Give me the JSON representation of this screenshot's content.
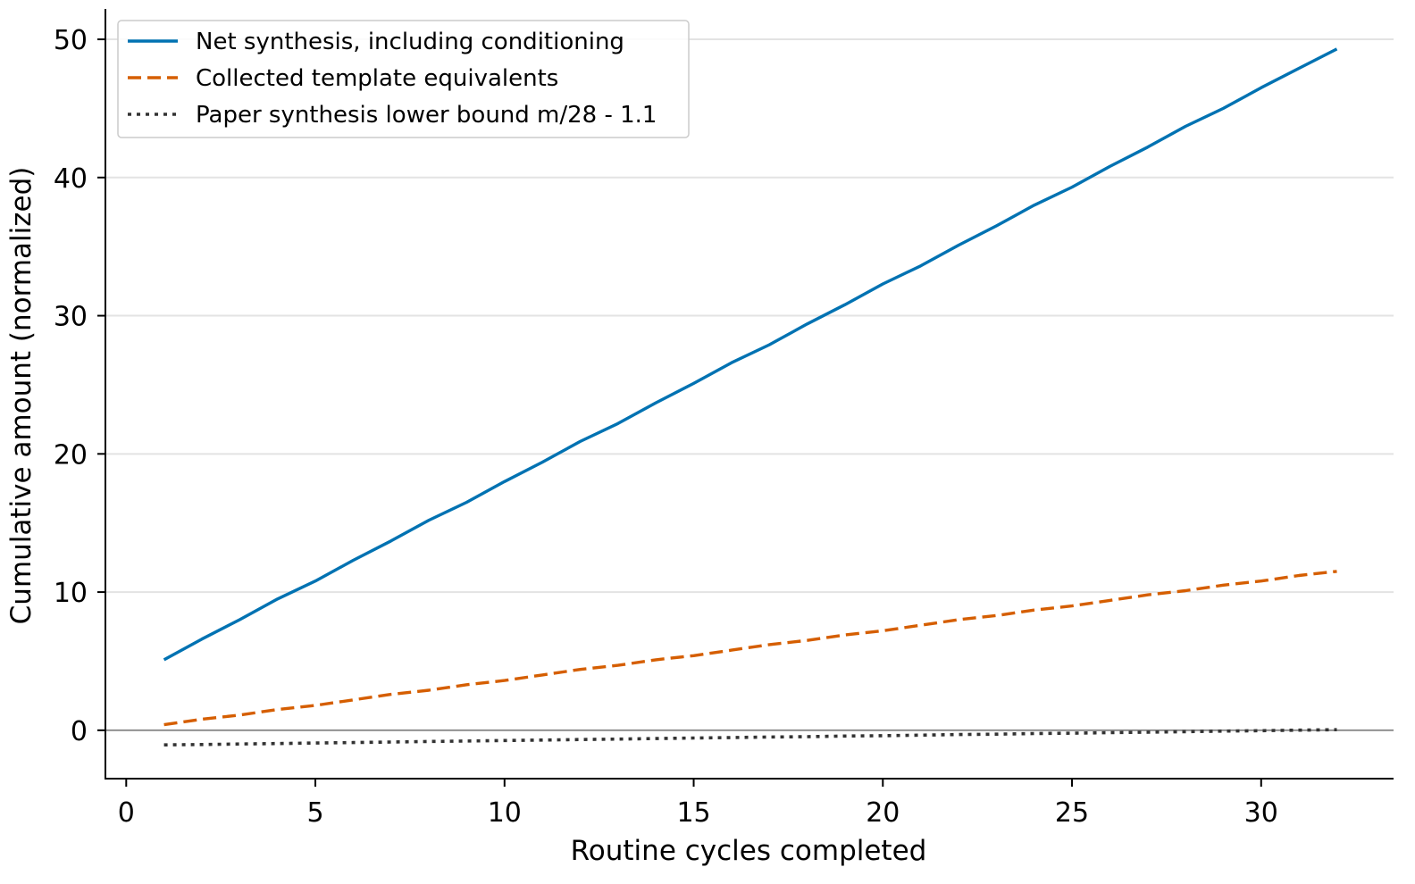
{
  "chart_data": {
    "type": "line",
    "title": "",
    "xlabel": "Routine cycles completed",
    "ylabel": "Cumulative amount (normalized)",
    "xlim": [
      -0.55,
      33.5
    ],
    "ylim": [
      -3.5,
      52.2
    ],
    "xticks": [
      0,
      5,
      10,
      15,
      20,
      25,
      30
    ],
    "yticks": [
      0,
      10,
      20,
      30,
      40,
      50
    ],
    "grid": "horizontal",
    "reference_line_y": 0,
    "legend_position": "top-left",
    "series": [
      {
        "name": "Net synthesis, including conditioning",
        "color": "#0072b2",
        "style": "solid",
        "x": [
          1,
          2,
          3,
          4,
          5,
          6,
          7,
          8,
          9,
          10,
          11,
          12,
          13,
          14,
          15,
          16,
          17,
          18,
          19,
          20,
          21,
          22,
          23,
          24,
          25,
          26,
          27,
          28,
          29,
          30,
          31,
          32
        ],
        "values": [
          5.1,
          6.6,
          8.0,
          9.5,
          10.8,
          12.3,
          13.7,
          15.2,
          16.5,
          18.0,
          19.4,
          20.9,
          22.2,
          23.7,
          25.1,
          26.6,
          27.9,
          29.4,
          30.8,
          32.3,
          33.6,
          35.1,
          36.5,
          38.0,
          39.3,
          40.8,
          42.2,
          43.7,
          45.0,
          46.5,
          47.9,
          49.3
        ]
      },
      {
        "name": "Collected template equivalents",
        "color": "#d55e00",
        "style": "dashed",
        "x": [
          1,
          2,
          3,
          4,
          5,
          6,
          7,
          8,
          9,
          10,
          11,
          12,
          13,
          14,
          15,
          16,
          17,
          18,
          19,
          20,
          21,
          22,
          23,
          24,
          25,
          26,
          27,
          28,
          29,
          30,
          31,
          32
        ],
        "values": [
          0.4,
          0.8,
          1.1,
          1.5,
          1.8,
          2.2,
          2.6,
          2.9,
          3.3,
          3.6,
          4.0,
          4.4,
          4.7,
          5.1,
          5.4,
          5.8,
          6.2,
          6.5,
          6.9,
          7.2,
          7.6,
          8.0,
          8.3,
          8.7,
          9.0,
          9.4,
          9.8,
          10.1,
          10.5,
          10.8,
          11.2,
          11.5
        ]
      },
      {
        "name": "Paper synthesis lower bound m/28 - 1.1",
        "color": "#333333",
        "style": "dotted",
        "x": [
          1,
          2,
          3,
          4,
          5,
          6,
          7,
          8,
          9,
          10,
          11,
          12,
          13,
          14,
          15,
          16,
          17,
          18,
          19,
          20,
          21,
          22,
          23,
          24,
          25,
          26,
          27,
          28,
          29,
          30,
          31,
          32
        ],
        "values": [
          -1.06,
          -1.03,
          -0.99,
          -0.96,
          -0.92,
          -0.89,
          -0.85,
          -0.81,
          -0.78,
          -0.74,
          -0.71,
          -0.67,
          -0.64,
          -0.6,
          -0.56,
          -0.53,
          -0.49,
          -0.46,
          -0.42,
          -0.39,
          -0.35,
          -0.31,
          -0.28,
          -0.24,
          -0.21,
          -0.17,
          -0.14,
          -0.1,
          -0.06,
          -0.03,
          0.01,
          0.04
        ]
      }
    ]
  }
}
